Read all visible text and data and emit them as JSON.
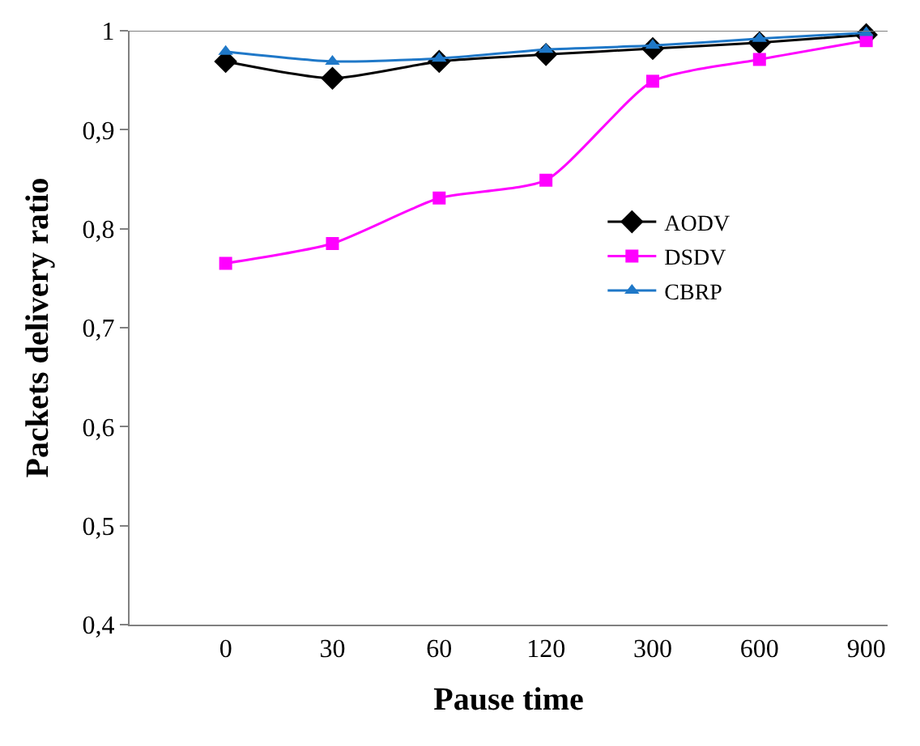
{
  "chart_data": {
    "type": "line",
    "xlabel": "Pause time",
    "ylabel": "Packets delivery ratio",
    "categories": [
      "0",
      "30",
      "60",
      "120",
      "300",
      "600",
      "900"
    ],
    "series": [
      {
        "name": "AODV",
        "color": "#000000",
        "marker": "diamond",
        "values": [
          0.969,
          0.952,
          0.969,
          0.976,
          0.982,
          0.988,
          0.996
        ]
      },
      {
        "name": "DSDV",
        "color": "#ff00ff",
        "marker": "square",
        "values": [
          0.765,
          0.785,
          0.831,
          0.849,
          0.949,
          0.971,
          0.99
        ]
      },
      {
        "name": "CBRP",
        "color": "#1f78c8",
        "marker": "triangle",
        "values": [
          0.979,
          0.969,
          0.972,
          0.981,
          0.985,
          0.992,
          0.998
        ]
      }
    ],
    "ylim": [
      0.4,
      1
    ],
    "yticks": [
      {
        "value": 0.4,
        "label": "0,4"
      },
      {
        "value": 0.5,
        "label": "0,5"
      },
      {
        "value": 0.6,
        "label": "0,6"
      },
      {
        "value": 0.7,
        "label": "0,7"
      },
      {
        "value": 0.8,
        "label": "0,8"
      },
      {
        "value": 0.9,
        "label": "0,9"
      },
      1
    ],
    "legend": "right",
    "line_style": "solid"
  }
}
